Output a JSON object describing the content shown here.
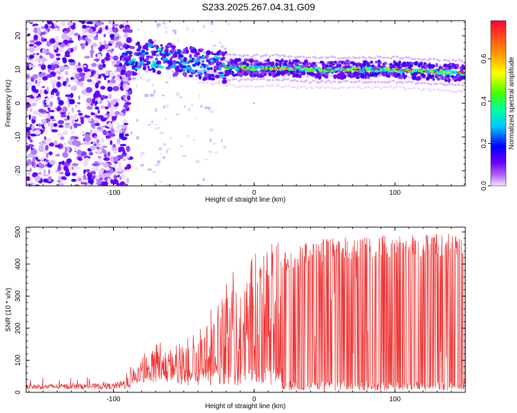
{
  "title": "S233.2025.267.04.31.G09",
  "chart_data": [
    {
      "type": "heatmap",
      "xlabel": "Height of straight line (km)",
      "ylabel": "Frequency (Hz)",
      "xlim": [
        -162,
        150
      ],
      "ylim": [
        -24.5,
        24.5
      ],
      "xticks": [
        -100,
        0,
        100
      ],
      "yticks": [
        -20,
        -10,
        0,
        10,
        20
      ],
      "colorbar": {
        "label": "Normalized spectral amplitude",
        "range": [
          0.0,
          0.78
        ],
        "ticks": [
          0.0,
          0.2,
          0.4,
          0.6
        ]
      },
      "ridge": {
        "x": [
          -95,
          -85,
          -75,
          -65,
          -55,
          -45,
          -35,
          -25,
          -15,
          -5,
          5,
          20,
          40,
          60,
          80,
          100,
          120,
          140,
          148
        ],
        "frequency": [
          12,
          13,
          14.5,
          13,
          12.5,
          12,
          11.5,
          11,
          10.5,
          10.5,
          10.5,
          10.5,
          10,
          10,
          10,
          10,
          9.5,
          9,
          9
        ]
      },
      "noise_region_x": [
        -162,
        -88
      ]
    },
    {
      "type": "line",
      "xlabel": "Height of straight line (km)",
      "ylabel": "SNR (10 * v/v)",
      "xlim": [
        -162,
        150
      ],
      "ylim": [
        0,
        515
      ],
      "xticks": [
        -100,
        0,
        100
      ],
      "yticks": [
        0,
        100,
        200,
        300,
        400,
        500
      ],
      "series": [
        {
          "name": "SNR",
          "color": "#ee3333",
          "envelope_x": [
            -162,
            -100,
            -90,
            -80,
            -60,
            -40,
            -30,
            -20,
            -10,
            0,
            10,
            20,
            30,
            50,
            80,
            100,
            120,
            140,
            150
          ],
          "envelope_y": [
            25,
            28,
            45,
            110,
            130,
            150,
            210,
            300,
            350,
            390,
            420,
            440,
            460,
            480,
            490,
            495,
            495,
            495,
            490
          ]
        }
      ]
    }
  ]
}
